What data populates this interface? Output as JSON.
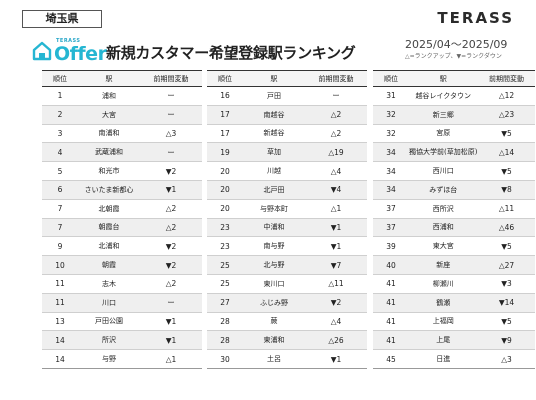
{
  "header": {
    "prefecture": "埼玉県",
    "brand": "TERASS",
    "logo_sub": "TERASS",
    "logo_word": "Offer",
    "title": "新規カスタマー希望登録駅ランキング",
    "period": "2025/04～2025/09",
    "legend": "△=ランクアップ、▼=ランクダウン"
  },
  "columns": {
    "rank": "順位",
    "station": "駅",
    "change": "前期間変動"
  },
  "tables": [
    {
      "rows": [
        {
          "rank": "1",
          "station": "浦和",
          "change": "ー"
        },
        {
          "rank": "2",
          "station": "大宮",
          "change": "ー"
        },
        {
          "rank": "3",
          "station": "南浦和",
          "change": "△3"
        },
        {
          "rank": "4",
          "station": "武蔵浦和",
          "change": "ー"
        },
        {
          "rank": "5",
          "station": "和光市",
          "change": "▼2"
        },
        {
          "rank": "6",
          "station": "さいたま新都心",
          "change": "▼1"
        },
        {
          "rank": "7",
          "station": "北朝霞",
          "change": "△2"
        },
        {
          "rank": "7",
          "station": "朝霞台",
          "change": "△2"
        },
        {
          "rank": "9",
          "station": "北浦和",
          "change": "▼2"
        },
        {
          "rank": "10",
          "station": "朝霞",
          "change": "▼2"
        },
        {
          "rank": "11",
          "station": "志木",
          "change": "△2"
        },
        {
          "rank": "11",
          "station": "川口",
          "change": "ー"
        },
        {
          "rank": "13",
          "station": "戸田公園",
          "change": "▼1"
        },
        {
          "rank": "14",
          "station": "所沢",
          "change": "▼1"
        },
        {
          "rank": "14",
          "station": "与野",
          "change": "△1"
        }
      ]
    },
    {
      "rows": [
        {
          "rank": "16",
          "station": "戸田",
          "change": "ー"
        },
        {
          "rank": "17",
          "station": "南越谷",
          "change": "△2"
        },
        {
          "rank": "17",
          "station": "新越谷",
          "change": "△2"
        },
        {
          "rank": "19",
          "station": "草加",
          "change": "△19"
        },
        {
          "rank": "20",
          "station": "川越",
          "change": "△4"
        },
        {
          "rank": "20",
          "station": "北戸田",
          "change": "▼4"
        },
        {
          "rank": "20",
          "station": "与野本町",
          "change": "△1"
        },
        {
          "rank": "23",
          "station": "中浦和",
          "change": "▼1"
        },
        {
          "rank": "23",
          "station": "南与野",
          "change": "▼1"
        },
        {
          "rank": "25",
          "station": "北与野",
          "change": "▼7"
        },
        {
          "rank": "25",
          "station": "東川口",
          "change": "△11"
        },
        {
          "rank": "27",
          "station": "ふじみ野",
          "change": "▼2"
        },
        {
          "rank": "28",
          "station": "蕨",
          "change": "△4"
        },
        {
          "rank": "28",
          "station": "東浦和",
          "change": "△26"
        },
        {
          "rank": "30",
          "station": "土呂",
          "change": "▼1"
        }
      ]
    },
    {
      "rows": [
        {
          "rank": "31",
          "station": "越谷レイクタウン",
          "change": "△12"
        },
        {
          "rank": "32",
          "station": "新三郷",
          "change": "△23"
        },
        {
          "rank": "32",
          "station": "宮原",
          "change": "▼5"
        },
        {
          "rank": "34",
          "station": "獨協大学前(草加松原)",
          "change": "△14"
        },
        {
          "rank": "34",
          "station": "西川口",
          "change": "▼5"
        },
        {
          "rank": "34",
          "station": "みずほ台",
          "change": "▼8"
        },
        {
          "rank": "37",
          "station": "西所沢",
          "change": "△11"
        },
        {
          "rank": "37",
          "station": "西浦和",
          "change": "△46"
        },
        {
          "rank": "39",
          "station": "東大宮",
          "change": "▼5"
        },
        {
          "rank": "40",
          "station": "新座",
          "change": "△27"
        },
        {
          "rank": "41",
          "station": "柳瀬川",
          "change": "▼3"
        },
        {
          "rank": "41",
          "station": "鶴瀬",
          "change": "▼14"
        },
        {
          "rank": "41",
          "station": "上福岡",
          "change": "▼5"
        },
        {
          "rank": "41",
          "station": "上尾",
          "change": "▼9"
        },
        {
          "rank": "45",
          "station": "日進",
          "change": "△3"
        }
      ]
    }
  ]
}
